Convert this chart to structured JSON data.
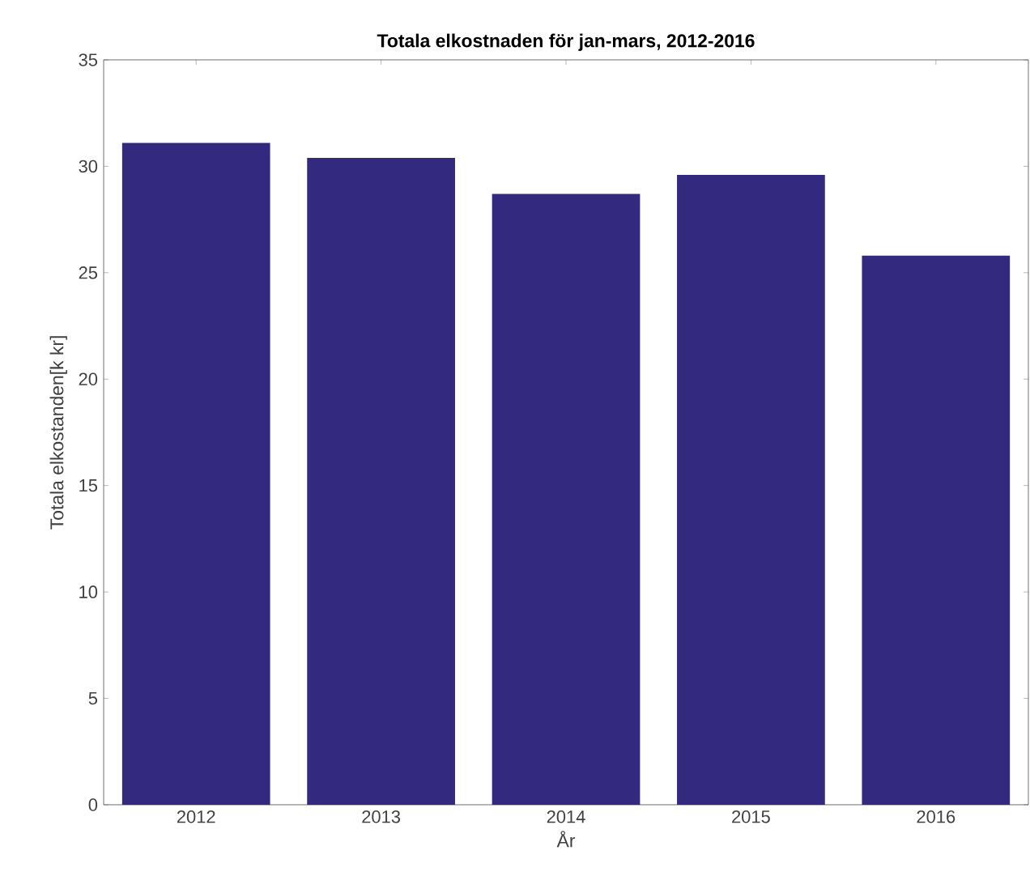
{
  "chart_data": {
    "type": "bar",
    "title": "Totala elkostnaden för jan-mars, 2012-2016",
    "xlabel": "År",
    "ylabel": "Totala elkostanden[k kr]",
    "categories": [
      "2012",
      "2013",
      "2014",
      "2015",
      "2016"
    ],
    "values": [
      31.1,
      30.4,
      28.7,
      29.6,
      25.8
    ],
    "color": "#332a80",
    "ylim": [
      0,
      35
    ],
    "yticks": [
      0,
      5,
      10,
      15,
      20,
      25,
      30,
      35
    ]
  }
}
